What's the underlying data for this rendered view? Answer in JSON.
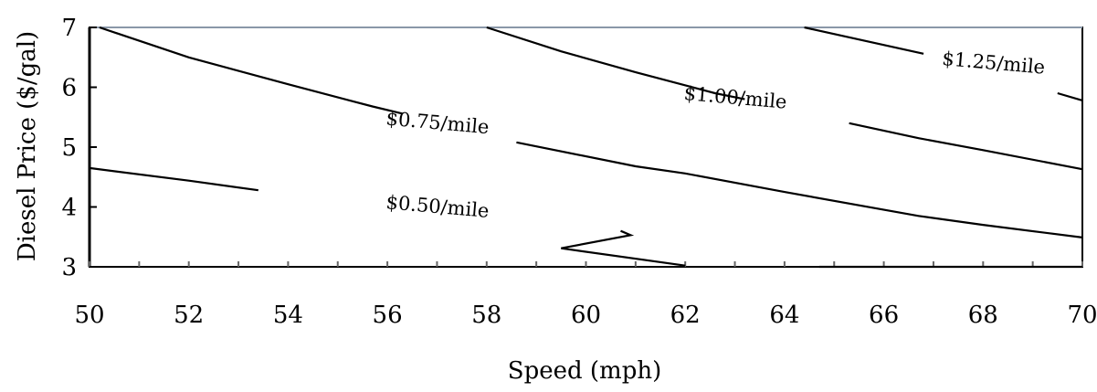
{
  "chart_data": {
    "type": "line",
    "title": "",
    "xlabel": "Speed (mph)",
    "ylabel": "Diesel Price ($/gal)",
    "xlim": [
      50,
      70
    ],
    "ylim": [
      3,
      7
    ],
    "x_ticks": [
      50,
      52,
      54,
      56,
      58,
      60,
      62,
      64,
      66,
      68,
      70
    ],
    "y_ticks": [
      3,
      4,
      5,
      6,
      7
    ],
    "grid": false,
    "legend": "none",
    "series": [
      {
        "name": "$0.50/mile",
        "label_at": {
          "x": 57.0,
          "y": 3.9,
          "angle": 5
        },
        "segments": [
          [
            [
              50.0,
              4.65
            ],
            [
              52.0,
              4.44
            ],
            [
              53.4,
              4.28
            ]
          ],
          [
            [
              60.7,
              3.6
            ],
            [
              60.9,
              3.53
            ],
            [
              59.5,
              3.31
            ],
            [
              62.0,
              3.02
            ]
          ]
        ]
      },
      {
        "name": "$0.75/mile",
        "label_at": {
          "x": 57.0,
          "y": 5.3,
          "angle": 5
        },
        "segments": [
          [
            [
              50.2,
              7.0
            ],
            [
              52.0,
              6.5
            ],
            [
              54.0,
              6.05
            ],
            [
              55.7,
              5.68
            ],
            [
              56.3,
              5.56
            ]
          ],
          [
            [
              58.6,
              5.08
            ],
            [
              61.0,
              4.68
            ],
            [
              62.0,
              4.56
            ],
            [
              64.0,
              4.25
            ],
            [
              66.7,
              3.85
            ],
            [
              68.0,
              3.7
            ],
            [
              70.0,
              3.49
            ]
          ]
        ]
      },
      {
        "name": "$1.00/mile",
        "label_at": {
          "x": 63.0,
          "y": 5.72,
          "angle": 5
        },
        "segments": [
          [
            [
              58.0,
              7.0
            ],
            [
              59.5,
              6.6
            ],
            [
              61.0,
              6.25
            ],
            [
              62.6,
              5.9
            ],
            [
              63.2,
              5.8
            ]
          ],
          [
            [
              65.3,
              5.4
            ],
            [
              66.7,
              5.15
            ],
            [
              68.0,
              4.95
            ],
            [
              70.0,
              4.63
            ]
          ]
        ]
      },
      {
        "name": "$1.25/mile",
        "label_at": {
          "x": 68.2,
          "y": 6.3,
          "angle": 5
        },
        "segments": [
          [
            [
              64.4,
              7.0
            ],
            [
              65.6,
              6.78
            ],
            [
              66.8,
              6.56
            ]
          ],
          [
            [
              69.5,
              5.9
            ],
            [
              70.0,
              5.78
            ]
          ]
        ]
      }
    ],
    "extra_lines": [
      [
        [
          64.7,
          3.0
        ],
        [
          70.0,
          3.0
        ]
      ]
    ]
  }
}
